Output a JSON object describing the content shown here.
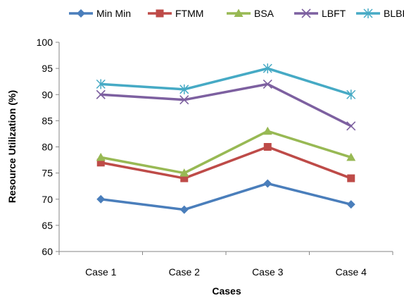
{
  "chart_data": {
    "type": "line",
    "title": "",
    "xlabel": "Cases",
    "ylabel": "Resource Utilization (%)",
    "categories": [
      "Case 1",
      "Case 2",
      "Case 3",
      "Case 4"
    ],
    "ylim": [
      60,
      100
    ],
    "yticks": [
      60,
      65,
      70,
      75,
      80,
      85,
      90,
      95,
      100
    ],
    "grid": false,
    "legend_position": "top",
    "series": [
      {
        "name": "Min Min",
        "values": [
          70,
          68,
          73,
          69
        ],
        "color": "#4a7ebb",
        "marker": "diamond"
      },
      {
        "name": "FTMM",
        "values": [
          77,
          74,
          80,
          74
        ],
        "color": "#be4b48",
        "marker": "square"
      },
      {
        "name": "BSA",
        "values": [
          78,
          75,
          83,
          78
        ],
        "color": "#98b954",
        "marker": "triangle"
      },
      {
        "name": "LBFT",
        "values": [
          90,
          89,
          92,
          84
        ],
        "color": "#7d60a0",
        "marker": "x"
      },
      {
        "name": "BLBFT",
        "values": [
          92,
          91,
          95,
          90
        ],
        "color": "#46aac5",
        "marker": "star"
      }
    ]
  }
}
